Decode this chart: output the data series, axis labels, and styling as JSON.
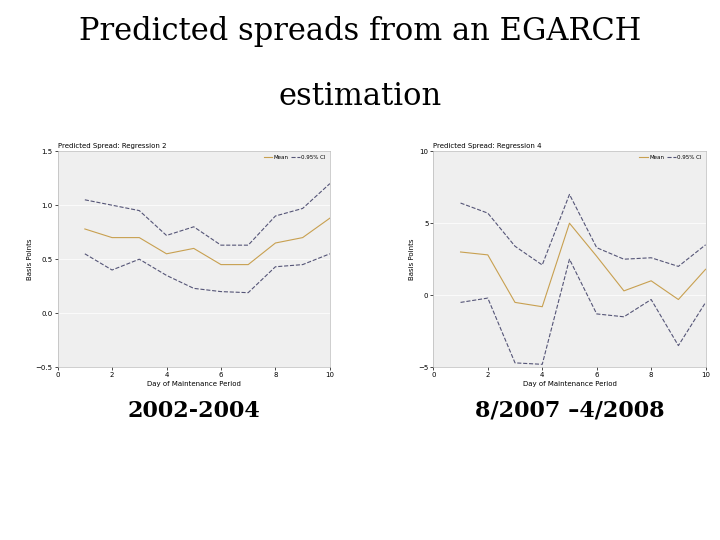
{
  "title_line1": "Predicted spreads from an EGARCH",
  "title_line2": "estimation",
  "title_fontsize": 22,
  "title_color": "#000000",
  "background_color": "#ffffff",
  "left_chart": {
    "title": "Predicted Spread: Regression 2",
    "xlabel": "Day of Maintenance Period",
    "ylabel": "Basis Points",
    "xlim": [
      0,
      10
    ],
    "ylim": [
      -0.5,
      1.5
    ],
    "yticks": [
      -0.5,
      0.0,
      0.5,
      1.0,
      1.5
    ],
    "xticks": [
      0,
      2,
      4,
      6,
      8,
      10
    ],
    "x": [
      1,
      2,
      3,
      4,
      5,
      6,
      7,
      8,
      9,
      10
    ],
    "mean": [
      0.78,
      0.7,
      0.7,
      0.55,
      0.6,
      0.45,
      0.45,
      0.65,
      0.7,
      0.88
    ],
    "ci_upper": [
      1.05,
      1.0,
      0.95,
      0.72,
      0.8,
      0.63,
      0.63,
      0.9,
      0.97,
      1.2
    ],
    "ci_lower": [
      0.55,
      0.4,
      0.5,
      0.35,
      0.23,
      0.2,
      0.19,
      0.43,
      0.45,
      0.55
    ],
    "mean_color": "#c8a050",
    "ci_color": "#555577",
    "label_mean": "Mean",
    "label_ci": "0.95% CI",
    "annotation": "2002-2004",
    "annotation_fontsize": 16
  },
  "right_chart": {
    "title": "Predicted Spread: Regression 4",
    "xlabel": "Day of Maintenance Period",
    "ylabel": "Basis Points",
    "xlim": [
      0,
      10
    ],
    "ylim": [
      -5,
      10
    ],
    "yticks": [
      -5,
      0,
      5,
      10
    ],
    "xticks": [
      0,
      2,
      4,
      6,
      8,
      10
    ],
    "x": [
      1,
      2,
      3,
      4,
      5,
      6,
      7,
      8,
      9,
      10
    ],
    "mean": [
      3.0,
      2.8,
      -0.5,
      -0.8,
      5.0,
      2.7,
      0.3,
      1.0,
      -0.3,
      1.8
    ],
    "ci_upper": [
      6.4,
      5.7,
      3.4,
      2.1,
      7.0,
      3.3,
      2.5,
      2.6,
      2.0,
      3.5
    ],
    "ci_lower": [
      -0.5,
      -0.2,
      -4.7,
      -4.8,
      2.5,
      -1.3,
      -1.5,
      -0.3,
      -3.5,
      -0.5
    ],
    "mean_color": "#c8a050",
    "ci_color": "#555577",
    "label_mean": "Mean",
    "label_ci": "0.95% CI",
    "annotation": "8/2007 –4/2008",
    "annotation_fontsize": 16
  }
}
